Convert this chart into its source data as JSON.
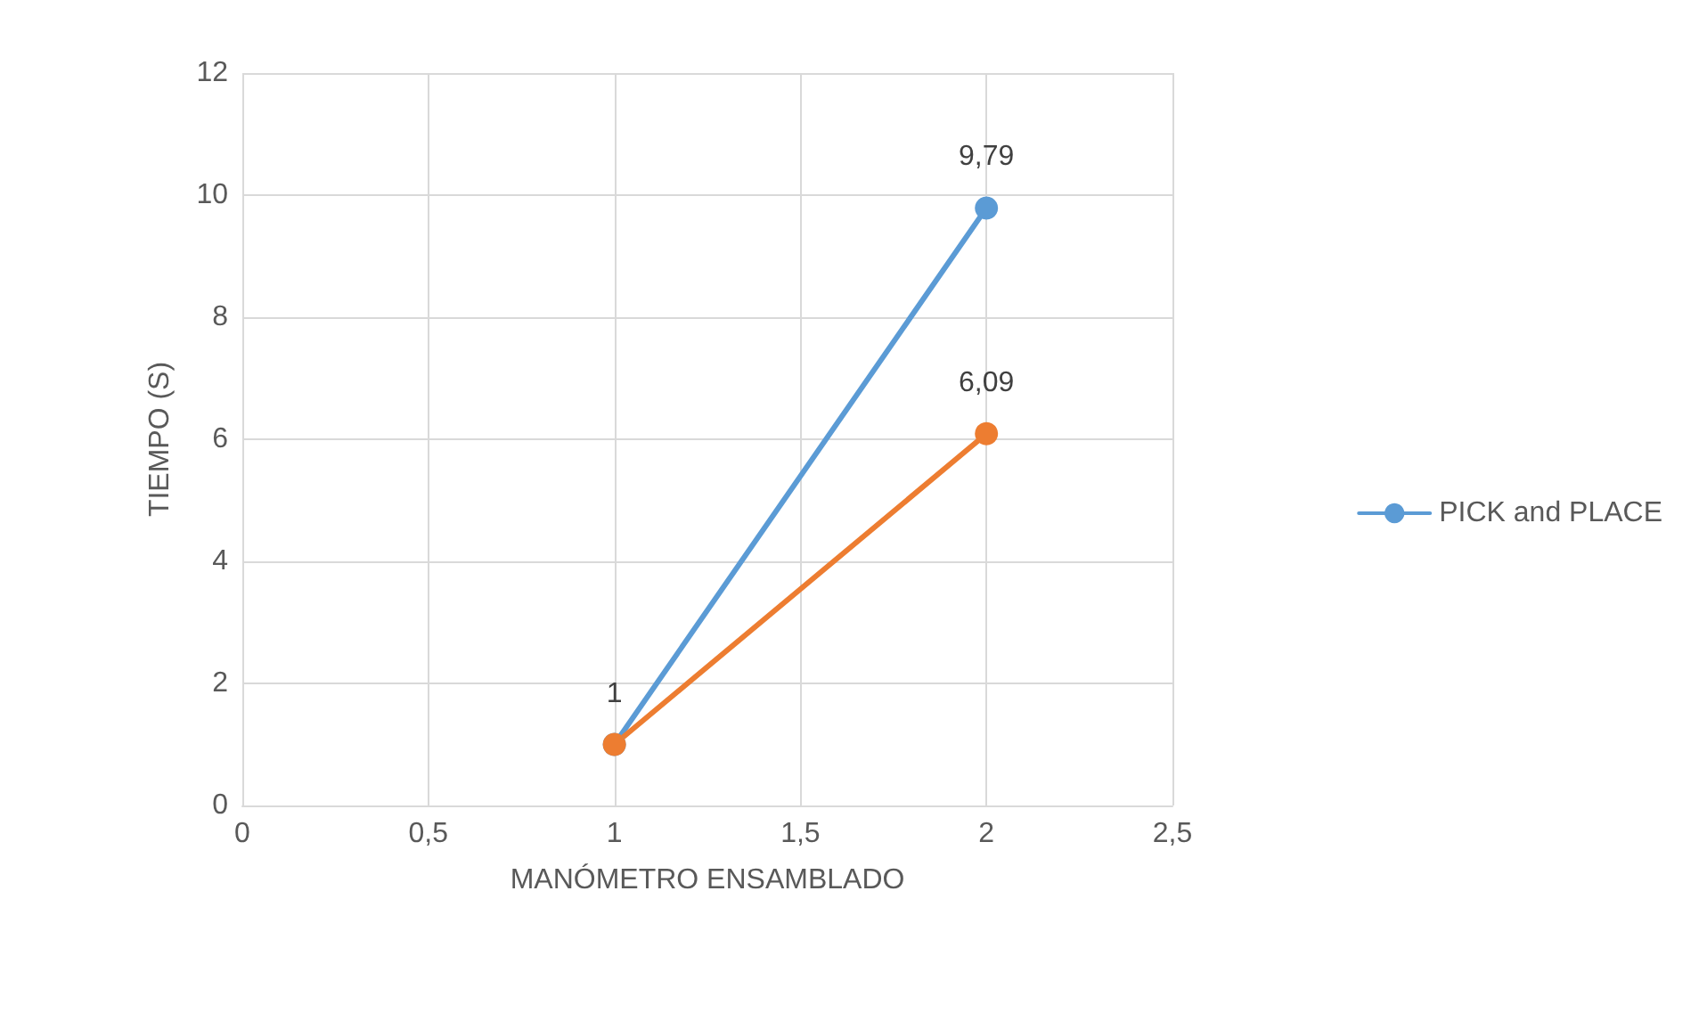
{
  "chart_data": {
    "type": "line",
    "xlabel": "MANÓMETRO ENSAMBLADO",
    "ylabel": "TIEMPO (S)",
    "xlim": [
      0,
      2.5
    ],
    "xticks": [
      0,
      {
        "value": 0.5,
        "label": "0,5"
      },
      1,
      {
        "value": 1.5,
        "label": "1,5"
      },
      2,
      {
        "value": 2.5,
        "label": "2,5"
      }
    ],
    "x": [
      1,
      2
    ],
    "ylim": [
      0,
      12
    ],
    "yticks": [
      0,
      2,
      4,
      6,
      8,
      10,
      12
    ],
    "grid": true,
    "legend": "right",
    "marker": "circle",
    "line_style": "solid",
    "series": [
      {
        "name": "PICK and PLACE",
        "color": "#5b9bd5",
        "values": [
          1,
          9.79
        ],
        "value_labels": [
          null,
          "9,79"
        ]
      },
      {
        "color": "#ed7d31",
        "values": [
          1,
          6.09
        ],
        "value_labels": [
          "1",
          "6,09"
        ]
      }
    ]
  }
}
